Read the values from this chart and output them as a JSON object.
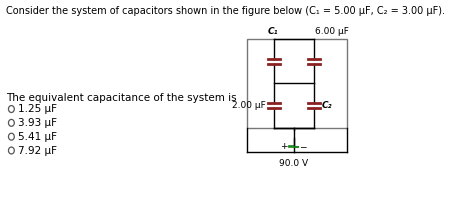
{
  "title_text": "Consider the system of capacitors shown in the figure below (C₁ = 5.00 μF, C₂ = 3.00 μF).",
  "question_text": "The equivalent capacitance of the system is",
  "options": [
    "1.25 μF",
    "3.93 μF",
    "5.41 μF",
    "7.92 μF"
  ],
  "bg_color": "#ffffff",
  "text_color": "#000000",
  "circuit_box_color": "#888888",
  "cap_color": "#8B2222",
  "bat_color": "#228B22",
  "label_C1": "C₁",
  "label_6uF": "6.00 μF",
  "label_2uF": "2.00 μF",
  "label_C2": "C₂",
  "label_voltage": "90.0 V",
  "font_size_title": 7.0,
  "font_size_labels": 6.5,
  "font_size_options": 7.5
}
